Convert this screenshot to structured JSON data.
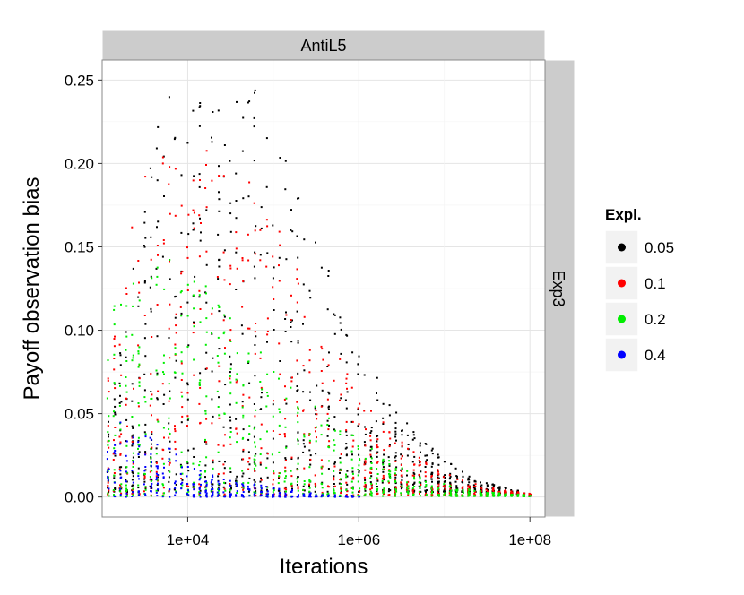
{
  "chart_data": {
    "type": "scatter",
    "facet_top": "AntiL5",
    "facet_right": "Exp3",
    "xlabel": "Iterations",
    "ylabel": "Payoff observation bias",
    "x_scale": "log10",
    "xlim": [
      1000,
      150000000
    ],
    "ylim": [
      -0.012,
      0.262
    ],
    "x_ticks": [
      10000,
      1000000,
      100000000
    ],
    "x_tick_labels": [
      "1e+04",
      "1e+06",
      "1e+08"
    ],
    "y_ticks": [
      0.0,
      0.05,
      0.1,
      0.15,
      0.2,
      0.25
    ],
    "y_tick_labels": [
      "0.00",
      "0.05",
      "0.10",
      "0.15",
      "0.20",
      "0.25"
    ],
    "grid": true,
    "legend": {
      "title": "Expl.",
      "placement": "right",
      "entries": [
        {
          "label": "0.05",
          "color": "#000000"
        },
        {
          "label": "0.1",
          "color": "#ff0000"
        },
        {
          "label": "0.2",
          "color": "#00ee00"
        },
        {
          "label": "0.4",
          "color": "#0000ff"
        }
      ]
    },
    "series": [
      {
        "name": "0.05",
        "color": "#000000",
        "envelope": [
          [
            1000,
            0.03
          ],
          [
            5000,
            0.24
          ],
          [
            30000,
            0.25
          ],
          [
            100000,
            0.24
          ],
          [
            300000,
            0.16
          ],
          [
            1000000,
            0.09
          ],
          [
            3000000,
            0.05
          ],
          [
            10000000,
            0.022
          ],
          [
            30000000,
            0.009
          ],
          [
            100000000,
            0.002
          ]
        ],
        "floor": 0.003,
        "count": 900
      },
      {
        "name": "0.1",
        "color": "#ff0000",
        "envelope": [
          [
            1000,
            0.06
          ],
          [
            3000,
            0.2
          ],
          [
            10000,
            0.21
          ],
          [
            30000,
            0.205
          ],
          [
            100000,
            0.17
          ],
          [
            300000,
            0.115
          ],
          [
            1000000,
            0.065
          ],
          [
            3000000,
            0.034
          ],
          [
            10000000,
            0.015
          ],
          [
            30000000,
            0.006
          ],
          [
            100000000,
            0.002
          ]
        ],
        "floor": 0.001,
        "count": 700
      },
      {
        "name": "0.2",
        "color": "#00ee00",
        "envelope": [
          [
            1000,
            0.1
          ],
          [
            3000,
            0.15
          ],
          [
            10000,
            0.14
          ],
          [
            30000,
            0.11
          ],
          [
            100000,
            0.08
          ],
          [
            300000,
            0.055
          ],
          [
            1000000,
            0.035
          ],
          [
            3000000,
            0.018
          ],
          [
            10000000,
            0.008
          ],
          [
            30000000,
            0.003
          ],
          [
            100000000,
            0.001
          ]
        ],
        "floor": 0.0005,
        "count": 650
      },
      {
        "name": "0.4",
        "color": "#0000ff",
        "envelope": [
          [
            1000,
            0.03
          ],
          [
            2000,
            0.052
          ],
          [
            10000,
            0.02
          ],
          [
            30000,
            0.01
          ],
          [
            100000,
            0.006
          ],
          [
            300000,
            0.002
          ],
          [
            1000000,
            0.001
          ]
        ],
        "floor": 0.0,
        "count": 300
      }
    ]
  }
}
